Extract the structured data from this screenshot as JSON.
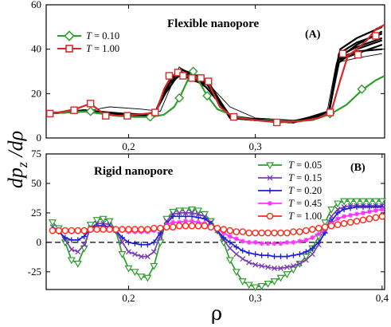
{
  "figure": {
    "ylabel": "dp_z /dρ",
    "xlabel": "ρ"
  },
  "chart_data": [
    {
      "panel": "A",
      "type": "line",
      "title": "Flexible nanopore",
      "panel_label": "(A)",
      "xlim": [
        0.135,
        0.402
      ],
      "ylim": [
        0,
        60
      ],
      "x_ticks": [
        0.2,
        0.3
      ],
      "x_tick_labels": [
        "0,2",
        "0,3"
      ],
      "y_ticks": [
        0,
        20,
        40,
        60
      ],
      "y_tick_labels": [
        "0",
        "20",
        "40",
        "60"
      ],
      "legend": [
        "T = 0.10",
        "T = 1.00"
      ],
      "series": [
        {
          "name": "T = 0.10",
          "color": "#2ca02c",
          "marker": "diamond",
          "x": [
            0.135,
            0.15,
            0.165,
            0.178,
            0.19,
            0.205,
            0.218,
            0.228,
            0.236,
            0.241,
            0.245,
            0.25,
            0.256,
            0.262,
            0.27,
            0.285,
            0.3,
            0.315,
            0.33,
            0.345,
            0.36,
            0.372,
            0.385,
            0.395,
            0.402
          ],
          "y": [
            11,
            11.5,
            12,
            11,
            10,
            9.5,
            9.5,
            10.5,
            14,
            19,
            24,
            30,
            25,
            19,
            13,
            9.5,
            8,
            7.5,
            7.5,
            8,
            11,
            15,
            22,
            26,
            28
          ],
          "marker_x": [
            0.17,
            0.217,
            0.24,
            0.251,
            0.262,
            0.359,
            0.384
          ],
          "marker_y": [
            12,
            9.5,
            18,
            30,
            19,
            11,
            22
          ]
        },
        {
          "name": "T = 1.00",
          "color": "#d62728",
          "marker": "square",
          "x": [
            0.135,
            0.145,
            0.158,
            0.17,
            0.18,
            0.192,
            0.205,
            0.215,
            0.222,
            0.228,
            0.234,
            0.238,
            0.242,
            0.246,
            0.25,
            0.256,
            0.262,
            0.272,
            0.282,
            0.3,
            0.318,
            0.335,
            0.35,
            0.36,
            0.367,
            0.373,
            0.38,
            0.388,
            0.395,
            0.402
          ],
          "y": [
            11,
            11.5,
            13,
            15.5,
            11,
            10,
            10.5,
            11,
            12,
            22,
            28,
            29,
            30,
            28,
            27,
            27,
            26,
            14,
            9.5,
            8,
            7,
            7.5,
            9,
            12,
            26,
            37,
            40,
            44,
            49,
            51
          ],
          "marker_x": [
            0.138,
            0.157,
            0.17,
            0.182,
            0.199,
            0.221,
            0.232,
            0.239,
            0.243,
            0.25,
            0.257,
            0.263,
            0.283,
            0.317,
            0.359,
            0.369,
            0.381,
            0.395
          ],
          "marker_y": [
            11,
            12.5,
            15.5,
            10,
            10,
            11.5,
            28,
            29.5,
            28,
            27,
            27,
            25.5,
            9.5,
            7,
            11.5,
            38,
            37.5,
            46
          ]
        }
      ],
      "background_lines": [
        {
          "x": [
            0.135,
            0.165,
            0.195,
            0.22,
            0.231,
            0.24,
            0.25,
            0.262,
            0.28,
            0.3,
            0.33,
            0.358,
            0.366,
            0.38,
            0.4
          ],
          "y": [
            11,
            12.5,
            10,
            10,
            24,
            28,
            27,
            25,
            10,
            8,
            7,
            11,
            36,
            42,
            48
          ]
        },
        {
          "x": [
            0.135,
            0.165,
            0.195,
            0.22,
            0.23,
            0.238,
            0.25,
            0.262,
            0.28,
            0.3,
            0.33,
            0.358,
            0.366,
            0.38,
            0.4
          ],
          "y": [
            11,
            12,
            10.5,
            10.5,
            22,
            30,
            26,
            24,
            9.5,
            8,
            7,
            12,
            34,
            40,
            44
          ]
        },
        {
          "x": [
            0.135,
            0.165,
            0.195,
            0.22,
            0.231,
            0.242,
            0.25,
            0.263,
            0.28,
            0.3,
            0.33,
            0.358,
            0.366,
            0.38,
            0.4
          ],
          "y": [
            11,
            12,
            10,
            9.5,
            25,
            31,
            28,
            25,
            9,
            8,
            7.5,
            11,
            38,
            43,
            47
          ]
        },
        {
          "x": [
            0.135,
            0.165,
            0.195,
            0.22,
            0.229,
            0.24,
            0.25,
            0.261,
            0.28,
            0.3,
            0.33,
            0.358,
            0.365,
            0.38,
            0.4
          ],
          "y": [
            11,
            12.5,
            11,
            10.5,
            20,
            29,
            27,
            23,
            10,
            8.5,
            7,
            12,
            35,
            38,
            42
          ]
        },
        {
          "x": [
            0.135,
            0.165,
            0.195,
            0.22,
            0.232,
            0.241,
            0.25,
            0.262,
            0.28,
            0.3,
            0.33,
            0.358,
            0.367,
            0.38,
            0.4
          ],
          "y": [
            11,
            12,
            10,
            10,
            26,
            31,
            29,
            26,
            9.5,
            8,
            7,
            11,
            40,
            45,
            50
          ]
        },
        {
          "x": [
            0.135,
            0.165,
            0.195,
            0.22,
            0.23,
            0.239,
            0.25,
            0.262,
            0.28,
            0.3,
            0.33,
            0.358,
            0.366,
            0.38,
            0.4
          ],
          "y": [
            11,
            12.5,
            10.5,
            10,
            23,
            29.5,
            27,
            24.5,
            10,
            8,
            7.5,
            11.5,
            37,
            41,
            45
          ]
        },
        {
          "x": [
            0.135,
            0.165,
            0.195,
            0.22,
            0.23,
            0.24,
            0.25,
            0.262,
            0.28,
            0.3,
            0.33,
            0.358,
            0.366,
            0.38,
            0.4
          ],
          "y": [
            11,
            12,
            10,
            10,
            24,
            30,
            27.5,
            25,
            9,
            8,
            7,
            11,
            36,
            39,
            40
          ]
        }
      ],
      "thin_line": {
        "x": [
          0.135,
          0.165,
          0.185,
          0.21,
          0.225,
          0.24,
          0.25,
          0.262,
          0.28,
          0.3,
          0.33,
          0.356,
          0.364,
          0.38,
          0.4
        ],
        "y": [
          11,
          12,
          14,
          13,
          12,
          32,
          28,
          25,
          14,
          9,
          8,
          10,
          34,
          36,
          38
        ]
      }
    },
    {
      "panel": "B",
      "type": "line",
      "title": "Rigid nanopore",
      "panel_label": "(B)",
      "xlim": [
        0.135,
        0.402
      ],
      "ylim": [
        -40,
        75
      ],
      "x_ticks": [
        0.2,
        0.3,
        0.4
      ],
      "x_tick_labels": [
        "0,2",
        "0,3",
        "0,4"
      ],
      "y_ticks": [
        -25,
        0,
        25,
        50,
        75
      ],
      "y_tick_labels": [
        "-25",
        "0",
        "25",
        "50",
        "75"
      ],
      "zero_line": true,
      "series": [
        {
          "name": "T = 0.05",
          "color": "#2ca02c",
          "marker": "triangle-down",
          "x": [
            0.14,
            0.145,
            0.15,
            0.155,
            0.16,
            0.165,
            0.17,
            0.175,
            0.18,
            0.185,
            0.19,
            0.195,
            0.2,
            0.205,
            0.21,
            0.215,
            0.22,
            0.225,
            0.23,
            0.235,
            0.24,
            0.245,
            0.25,
            0.255,
            0.26,
            0.265,
            0.27,
            0.275,
            0.28,
            0.285,
            0.29,
            0.295,
            0.3,
            0.305,
            0.31,
            0.315,
            0.32,
            0.325,
            0.33,
            0.335,
            0.34,
            0.345,
            0.35,
            0.355,
            0.36,
            0.365,
            0.37,
            0.375,
            0.38,
            0.385,
            0.39,
            0.395,
            0.4
          ],
          "y": [
            17,
            12,
            0,
            -15,
            -18,
            -5,
            15,
            19,
            20,
            18,
            10,
            -10,
            -22,
            -25,
            -29,
            -30,
            -20,
            0,
            20,
            26,
            27,
            27,
            28,
            27,
            24,
            18,
            10,
            0,
            -15,
            -25,
            -33,
            -36,
            -38,
            -37,
            -35,
            -33,
            -30,
            -27,
            -23,
            -18,
            -12,
            -5,
            5,
            17,
            28,
            33,
            35,
            35,
            35,
            35,
            35,
            35,
            35
          ]
        },
        {
          "name": "T = 0.15",
          "color": "#7b3fb5",
          "marker": "x",
          "x": [
            0.14,
            0.145,
            0.15,
            0.155,
            0.16,
            0.165,
            0.17,
            0.175,
            0.18,
            0.185,
            0.19,
            0.195,
            0.2,
            0.205,
            0.21,
            0.215,
            0.22,
            0.225,
            0.23,
            0.235,
            0.24,
            0.245,
            0.25,
            0.255,
            0.26,
            0.265,
            0.27,
            0.275,
            0.28,
            0.285,
            0.29,
            0.295,
            0.3,
            0.305,
            0.31,
            0.315,
            0.32,
            0.325,
            0.33,
            0.335,
            0.34,
            0.345,
            0.35,
            0.355,
            0.36,
            0.365,
            0.37,
            0.375,
            0.38,
            0.385,
            0.39,
            0.395,
            0.4
          ],
          "y": [
            13,
            10,
            2,
            -6,
            -8,
            -2,
            12,
            16,
            16,
            15,
            10,
            0,
            -8,
            -10,
            -12,
            -12,
            -8,
            5,
            18,
            24,
            25,
            25,
            25,
            24,
            22,
            17,
            10,
            2,
            -5,
            -10,
            -14,
            -17,
            -19,
            -20,
            -21,
            -22,
            -22,
            -21,
            -20,
            -18,
            -15,
            -10,
            -2,
            10,
            22,
            28,
            30,
            31,
            31,
            31,
            31,
            31,
            31
          ]
        },
        {
          "name": "T = 0.20",
          "color": "#1f1fd6",
          "marker": "plus",
          "x": [
            0.14,
            0.145,
            0.15,
            0.155,
            0.16,
            0.165,
            0.17,
            0.175,
            0.18,
            0.185,
            0.19,
            0.195,
            0.2,
            0.205,
            0.21,
            0.215,
            0.22,
            0.225,
            0.23,
            0.235,
            0.24,
            0.245,
            0.25,
            0.255,
            0.26,
            0.265,
            0.27,
            0.275,
            0.28,
            0.285,
            0.29,
            0.295,
            0.3,
            0.305,
            0.31,
            0.315,
            0.32,
            0.325,
            0.33,
            0.335,
            0.34,
            0.345,
            0.35,
            0.355,
            0.36,
            0.365,
            0.37,
            0.375,
            0.38,
            0.385,
            0.39,
            0.395,
            0.4
          ],
          "y": [
            11,
            9,
            4,
            2,
            2,
            5,
            12,
            14,
            14,
            13,
            10,
            4,
            0,
            -1,
            -2,
            -2,
            0,
            8,
            16,
            22,
            22,
            22,
            22,
            21,
            20,
            16,
            10,
            4,
            0,
            -4,
            -7,
            -9,
            -10,
            -11,
            -11,
            -12,
            -12,
            -12,
            -11,
            -10,
            -8,
            -5,
            0,
            8,
            18,
            25,
            28,
            29,
            30,
            30,
            30,
            30,
            30
          ]
        },
        {
          "name": "T = 0.45",
          "color": "#ff33ff",
          "marker": "star",
          "x": [
            0.14,
            0.145,
            0.15,
            0.155,
            0.16,
            0.165,
            0.17,
            0.175,
            0.18,
            0.185,
            0.19,
            0.195,
            0.2,
            0.205,
            0.21,
            0.215,
            0.22,
            0.225,
            0.23,
            0.235,
            0.24,
            0.245,
            0.25,
            0.255,
            0.26,
            0.265,
            0.27,
            0.275,
            0.28,
            0.285,
            0.29,
            0.295,
            0.3,
            0.305,
            0.31,
            0.315,
            0.32,
            0.325,
            0.33,
            0.335,
            0.34,
            0.345,
            0.35,
            0.355,
            0.36,
            0.365,
            0.37,
            0.375,
            0.38,
            0.385,
            0.39,
            0.395,
            0.4
          ],
          "y": [
            10,
            10,
            9,
            9,
            9,
            9,
            10,
            11,
            11,
            11,
            11,
            10,
            9,
            9,
            9,
            9,
            10,
            12,
            15,
            17,
            17,
            18,
            18,
            17,
            16,
            14,
            11,
            8,
            5,
            3,
            1,
            0,
            0,
            -1,
            -1,
            -1,
            -1,
            0,
            0,
            1,
            2,
            4,
            7,
            11,
            16,
            20,
            22,
            23,
            24,
            25,
            26,
            27,
            28
          ]
        },
        {
          "name": "T = 1.00",
          "color": "#ff2a1a",
          "marker": "circle",
          "x": [
            0.14,
            0.145,
            0.15,
            0.155,
            0.16,
            0.165,
            0.17,
            0.175,
            0.18,
            0.185,
            0.19,
            0.195,
            0.2,
            0.205,
            0.21,
            0.215,
            0.22,
            0.225,
            0.23,
            0.235,
            0.24,
            0.245,
            0.25,
            0.255,
            0.26,
            0.265,
            0.27,
            0.275,
            0.28,
            0.285,
            0.29,
            0.295,
            0.3,
            0.305,
            0.31,
            0.315,
            0.32,
            0.325,
            0.33,
            0.335,
            0.34,
            0.345,
            0.35,
            0.355,
            0.36,
            0.365,
            0.37,
            0.375,
            0.38,
            0.385,
            0.39,
            0.395,
            0.4
          ],
          "y": [
            10,
            10,
            10,
            10,
            10,
            10,
            11,
            11,
            11,
            11,
            11,
            11,
            11,
            11,
            11,
            11,
            12,
            12,
            13,
            13,
            14,
            14,
            14,
            14,
            14,
            13,
            12,
            11,
            10,
            9,
            9,
            8,
            8,
            8,
            8,
            8,
            8,
            8,
            9,
            9,
            10,
            11,
            12,
            13,
            14,
            15,
            16,
            17,
            18,
            19,
            20,
            21,
            22
          ]
        }
      ]
    }
  ]
}
